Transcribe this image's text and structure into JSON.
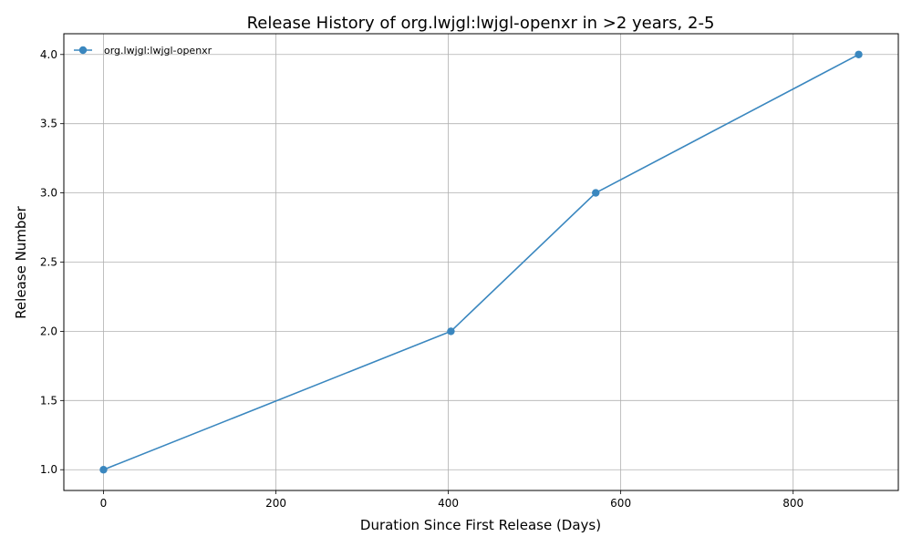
{
  "chart_data": {
    "type": "line",
    "title": "Release History of org.lwjgl:lwjgl-openxr in >2 years, 2-5",
    "xlabel": "Duration Since First Release (Days)",
    "ylabel": "Release Number",
    "xlim": [
      -46,
      922
    ],
    "ylim": [
      0.85,
      4.15
    ],
    "xticks": [
      0,
      200,
      400,
      600,
      800
    ],
    "xtick_labels": [
      "0",
      "200",
      "400",
      "600",
      "800"
    ],
    "yticks": [
      1.0,
      1.5,
      2.0,
      2.5,
      3.0,
      3.5,
      4.0
    ],
    "ytick_labels": [
      "1.0",
      "1.5",
      "2.0",
      "2.5",
      "3.0",
      "3.5",
      "4.0"
    ],
    "grid": true,
    "legend_placement": "top-left",
    "series": [
      {
        "name": "org.lwjgl:lwjgl-openxr",
        "color": "#3a87bf",
        "marker": "circle",
        "x": [
          0,
          403,
          571,
          876
        ],
        "y": [
          1,
          2,
          3,
          4
        ]
      }
    ]
  }
}
